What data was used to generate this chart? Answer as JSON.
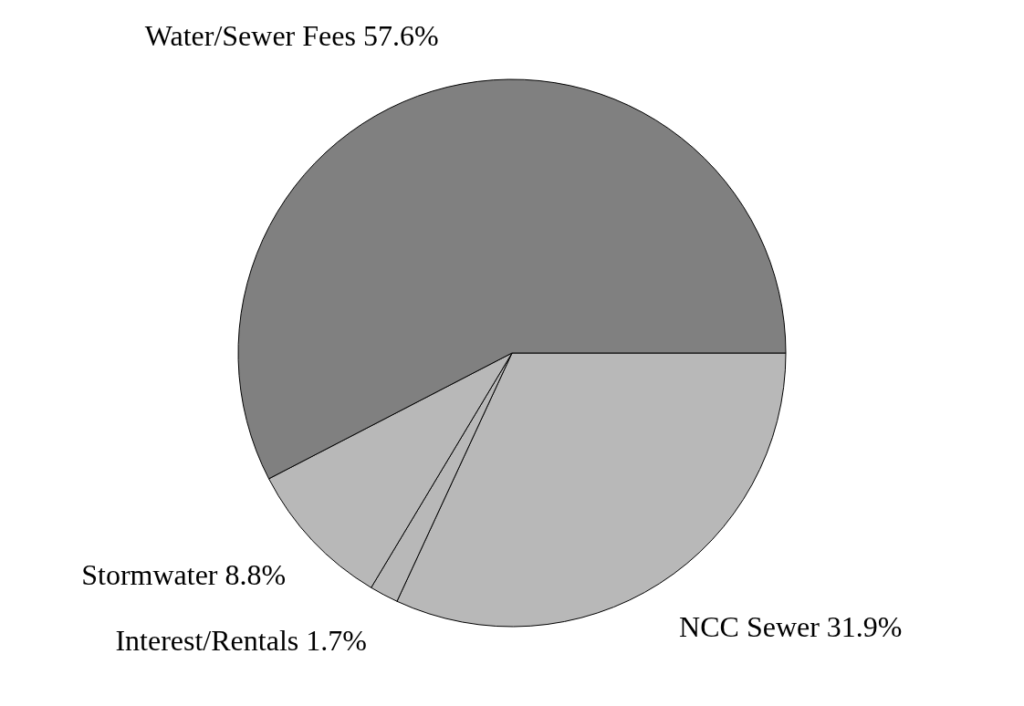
{
  "chart_data": {
    "type": "pie",
    "categories": [
      "NCC Sewer",
      "Interest/Rentals",
      "Stormwater",
      "Water/Sewer Fees"
    ],
    "values": [
      31.9,
      1.7,
      8.8,
      57.6
    ],
    "value_labels": [
      "31.9%",
      "1.7%",
      "8.8%",
      "57.6%"
    ],
    "colors": [
      "#b8b8b8",
      "#b8b8b8",
      "#b8b8b8",
      "#808080"
    ]
  }
}
